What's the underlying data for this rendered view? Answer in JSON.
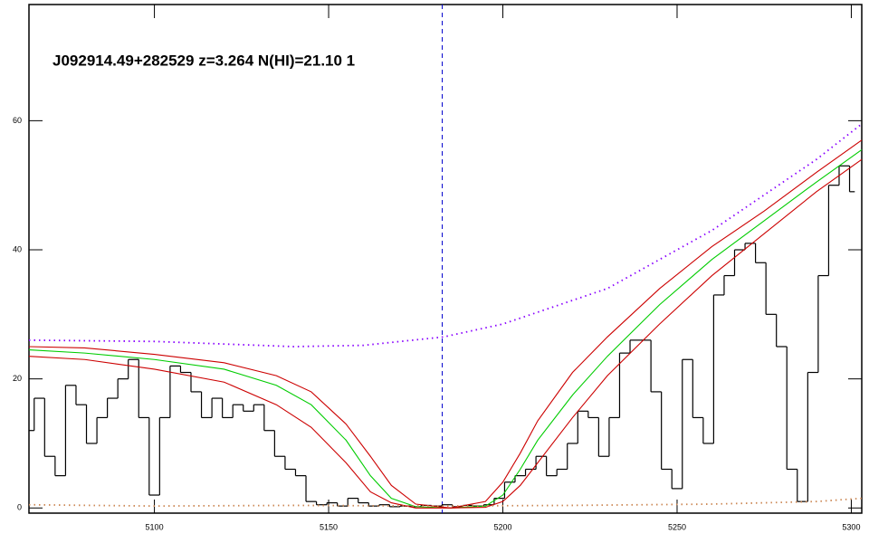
{
  "chart_data": {
    "type": "line",
    "annotation": "J092914.49+282529 z=3.264 N(HI)=21.10 1",
    "xlim": [
      5064,
      5303
    ],
    "ylim": [
      -0.8,
      78
    ],
    "xticks": [
      5100,
      5150,
      5200,
      5250,
      5300
    ],
    "yticks": [
      0,
      20,
      40,
      60
    ],
    "reference_x": 5182.6,
    "reference_color": "#0000cc",
    "series": [
      {
        "color": "#000000",
        "style": "steps",
        "x": [
          5064,
          5067,
          5070,
          5073,
          5076,
          5079,
          5082,
          5085,
          5088,
          5091,
          5094,
          5097,
          5100,
          5103,
          5106,
          5109,
          5112,
          5115,
          5118,
          5121,
          5124,
          5127,
          5130,
          5133,
          5136,
          5139,
          5142,
          5145,
          5148,
          5151,
          5154,
          5157,
          5160,
          5163,
          5166,
          5169,
          5172,
          5175,
          5178,
          5181,
          5184,
          5187,
          5190,
          5193,
          5196,
          5199,
          5202,
          5205,
          5208,
          5211,
          5214,
          5217,
          5220,
          5223,
          5226,
          5229,
          5232,
          5235,
          5238,
          5241,
          5244,
          5247,
          5250,
          5253,
          5256,
          5259,
          5262,
          5265,
          5268,
          5271,
          5274,
          5277,
          5280,
          5283,
          5286,
          5289,
          5292,
          5295,
          5298,
          5301
        ],
        "values": [
          12,
          17,
          8,
          5,
          19,
          16,
          10,
          14,
          17,
          20,
          23,
          14,
          2,
          14,
          22,
          21,
          18,
          14,
          17,
          14,
          16,
          15,
          16,
          12,
          8,
          6,
          5,
          1,
          0.5,
          0.8,
          0.3,
          1.5,
          0.8,
          0.3,
          0.5,
          0.2,
          0.3,
          0.2,
          0.4,
          0.3,
          0.5,
          0.2,
          0.4,
          0.3,
          0.5,
          1.5,
          4,
          5,
          6,
          8,
          5,
          6,
          10,
          15,
          14,
          8,
          14,
          24,
          26,
          26,
          18,
          6,
          3,
          23,
          14,
          10,
          33,
          36,
          40,
          41,
          38,
          30,
          25,
          6,
          1,
          21,
          36,
          50,
          53,
          49
        ]
      },
      {
        "color": "#00cc00",
        "style": "solid",
        "x": [
          5064,
          5080,
          5100,
          5120,
          5135,
          5145,
          5155,
          5162,
          5168,
          5175,
          5185,
          5195,
          5200,
          5205,
          5210,
          5220,
          5230,
          5245,
          5260,
          5275,
          5290,
          5303
        ],
        "values": [
          24.5,
          24,
          23,
          21.5,
          19,
          16,
          10.5,
          5,
          1.5,
          0.2,
          0,
          0.3,
          2,
          6,
          10.5,
          17.5,
          23.5,
          31.5,
          38.5,
          44.5,
          50.5,
          55.5
        ]
      },
      {
        "color": "#cc0000",
        "style": "solid",
        "x": [
          5064,
          5080,
          5100,
          5120,
          5135,
          5145,
          5155,
          5162,
          5168,
          5175,
          5185,
          5195,
          5200,
          5205,
          5210,
          5220,
          5230,
          5245,
          5260,
          5275,
          5290,
          5303
        ],
        "values": [
          25,
          24.8,
          23.8,
          22.5,
          20.5,
          18,
          13,
          8,
          3.5,
          0.6,
          0,
          1,
          4,
          8.5,
          13.5,
          21,
          26.5,
          34,
          40.5,
          46,
          52,
          57
        ]
      },
      {
        "color": "#cc0000",
        "style": "solid",
        "x": [
          5064,
          5080,
          5100,
          5120,
          5135,
          5145,
          5155,
          5162,
          5168,
          5175,
          5185,
          5195,
          5200,
          5205,
          5210,
          5220,
          5230,
          5245,
          5260,
          5275,
          5290,
          5303
        ],
        "values": [
          23.5,
          23,
          21.5,
          19.5,
          16,
          12.5,
          7,
          2.5,
          0.8,
          0,
          0,
          0.1,
          1,
          3.5,
          7,
          14,
          20.5,
          28.5,
          36,
          42.5,
          49,
          54
        ]
      },
      {
        "color": "#8800ff",
        "style": "dotted",
        "x": [
          5064,
          5100,
          5140,
          5160,
          5183,
          5200,
          5230,
          5260,
          5290,
          5303
        ],
        "values": [
          26,
          25.8,
          25,
          25.2,
          26.5,
          28.5,
          34,
          43,
          54,
          59.5
        ]
      },
      {
        "color": "#cc8855",
        "style": "dotted",
        "x": [
          5064,
          5100,
          5140,
          5180,
          5220,
          5260,
          5290,
          5303
        ],
        "values": [
          0.5,
          0.3,
          0.4,
          0.3,
          0.4,
          0.6,
          1,
          1.5
        ]
      }
    ]
  }
}
